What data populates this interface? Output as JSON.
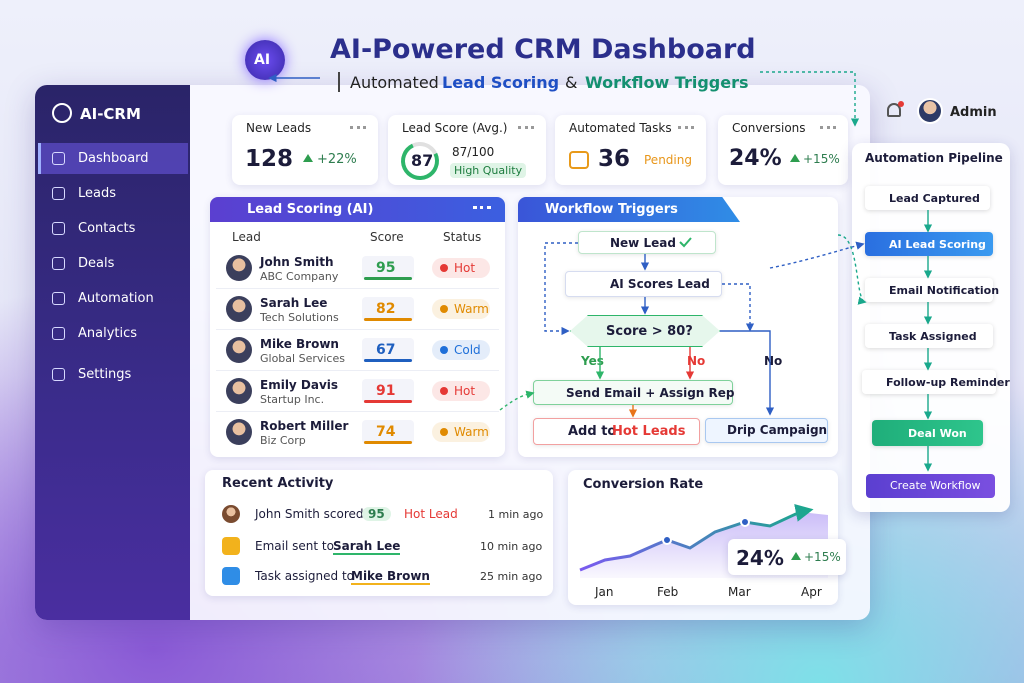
{
  "header": {
    "badge": "AI",
    "title": "AI-Powered CRM Dashboard",
    "subtitle": [
      "Automated",
      "Lead Scoring",
      "&",
      "Workflow Triggers"
    ]
  },
  "sidebar": {
    "brand": "AI-CRM",
    "nav": [
      "Dashboard",
      "Leads",
      "Contacts",
      "Deals",
      "Automation",
      "Analytics",
      "Settings"
    ],
    "active": 0
  },
  "user": {
    "name": "Admin"
  },
  "kpis": [
    {
      "label": "New Leads",
      "value": 128,
      "change": "+22%"
    },
    {
      "label": "Lead Score (Avg.)",
      "value": 87,
      "detail": "87/100",
      "tag": "High Quality"
    },
    {
      "label": "Automated Tasks",
      "value": 36,
      "status": "Pending"
    },
    {
      "label": "Conversions",
      "value": "24%",
      "change": "+15%"
    }
  ],
  "lead_scoring": {
    "title": "Lead Scoring (AI)",
    "columns": [
      "Lead",
      "Score",
      "Status"
    ],
    "rows": [
      {
        "name": "John Smith",
        "company": "ABC Company",
        "score": 95,
        "score_color": "#2e9d4f",
        "status": "Hot",
        "status_color": "#e53935"
      },
      {
        "name": "Sarah Lee",
        "company": "Tech Solutions",
        "score": 82,
        "score_color": "#e08a00",
        "status": "Warm",
        "status_color": "#e08a00"
      },
      {
        "name": "Mike Brown",
        "company": "Global Services",
        "score": 67,
        "score_color": "#1f5fbf",
        "status": "Cold",
        "status_color": "#1e6fd9"
      },
      {
        "name": "Emily Davis",
        "company": "Startup Inc.",
        "score": 91,
        "score_color": "#e53935",
        "status": "Hot",
        "status_color": "#e53935"
      },
      {
        "name": "Robert Miller",
        "company": "Biz Corp",
        "score": 74,
        "score_color": "#e08a00",
        "status": "Warm",
        "status_color": "#e08a00"
      }
    ]
  },
  "workflow": {
    "title": "Workflow Triggers",
    "trigger": "New Lead",
    "scoring": "AI Scores Lead",
    "condition": "Score > 80?",
    "yes": "Yes",
    "no": "No",
    "no_branch": "No",
    "action": "Send Email + Assign Rep",
    "hot": [
      "Add to",
      "Hot Leads"
    ],
    "drip": "Drip Campaign"
  },
  "activity": {
    "title": "Recent Activity",
    "items": [
      {
        "text": "John Smith scored",
        "score": 95,
        "tag": "Hot Lead",
        "time": "1 min ago"
      },
      {
        "text": "Email sent to",
        "target": "Sarah Lee",
        "time": "10 min ago"
      },
      {
        "text": "Task assigned to",
        "target": "Mike Brown",
        "time": "25 min ago"
      }
    ]
  },
  "conversion": {
    "title": "Conversion Rate",
    "months": [
      "Jan",
      "Feb",
      "Mar",
      "Apr"
    ],
    "value": "24%",
    "change": "+15%"
  },
  "pipeline": {
    "title": "Automation Pipeline",
    "steps": [
      "Lead Captured",
      "AI Lead Scoring",
      "Email Notification",
      "Task Assigned",
      "Follow-up Reminder",
      "Deal Won"
    ],
    "button": "Create Workflow"
  }
}
